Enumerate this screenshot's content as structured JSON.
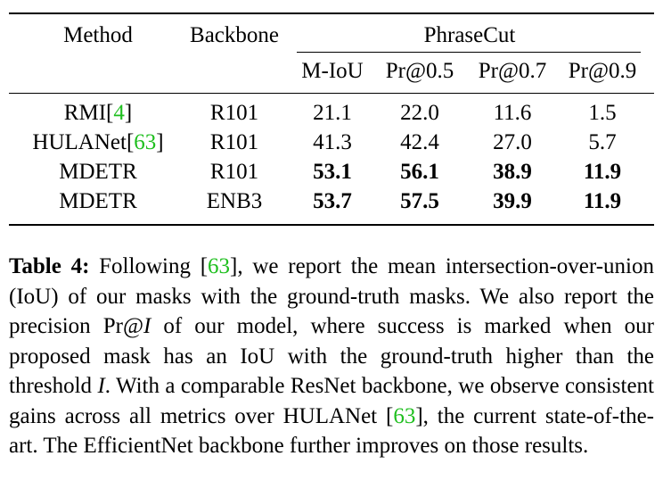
{
  "table": {
    "headers": {
      "method": "Method",
      "backbone": "Backbone",
      "group": "PhraseCut",
      "metrics": [
        "M-IoU",
        "Pr@0.5",
        "Pr@0.7",
        "Pr@0.9"
      ]
    },
    "rows": [
      {
        "method": "RMI",
        "cite": "4",
        "backbone": "R101",
        "values": [
          "21.1",
          "22.0",
          "11.6",
          "1.5"
        ],
        "bold": false
      },
      {
        "method": "HULANet",
        "cite": "63",
        "backbone": "R101",
        "values": [
          "41.3",
          "42.4",
          "27.0",
          "5.7"
        ],
        "bold": false
      },
      {
        "method": "MDETR",
        "cite": "",
        "backbone": "R101",
        "values": [
          "53.1",
          "56.1",
          "38.9",
          "11.9"
        ],
        "bold": true
      },
      {
        "method": "MDETR",
        "cite": "",
        "backbone": "ENB3",
        "values": [
          "53.7",
          "57.5",
          "39.9",
          "11.9"
        ],
        "bold": true
      }
    ]
  },
  "caption": {
    "label": "Table 4:",
    "t1": " Following [",
    "cite1": "63",
    "t2": "], we report the mean intersection-over-union (IoU) of our masks with the ground-truth masks. We also report the precision Pr@",
    "var1": "I",
    "t3": " of our model, where success is marked when our proposed mask has an IoU with the ground-truth higher than the threshold ",
    "var2": "I",
    "t4": ". With a comparable ResNet backbone, we observe consistent gains across all metrics over HULANet [",
    "cite2": "63",
    "t5": "], the current state-of-the-art. The EfficientNet backbone further improves on those results."
  }
}
